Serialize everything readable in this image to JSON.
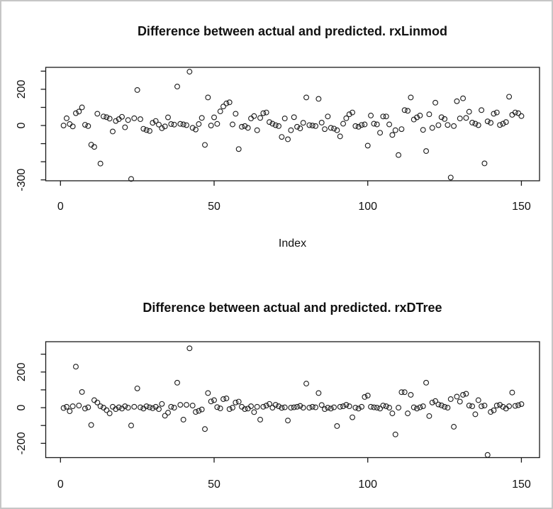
{
  "window": {
    "background": "#ffffff",
    "border_color": "#c6c6c6",
    "plot_color": "#1a1a1a"
  },
  "chart_data": [
    {
      "type": "scatter",
      "title": "Difference between actual and predicted. rxLinmod",
      "xlabel": "Index",
      "ylabel": "",
      "grid": false,
      "marker": "open-circle",
      "xlim": [
        -4.8,
        155.9
      ],
      "ylim": [
        -305,
        321
      ],
      "x_ticks": [
        {
          "v": 0,
          "label": "0"
        },
        {
          "v": 50,
          "label": "50"
        },
        {
          "v": 100,
          "label": "100"
        },
        {
          "v": 150,
          "label": "150"
        }
      ],
      "y_ticks": [
        {
          "v": -300,
          "label": "-300"
        },
        {
          "v": -200,
          "label": ""
        },
        {
          "v": -100,
          "label": ""
        },
        {
          "v": 0,
          "label": "0"
        },
        {
          "v": 100,
          "label": ""
        },
        {
          "v": 200,
          "label": "200"
        },
        {
          "v": 300,
          "label": ""
        }
      ],
      "points": [
        [
          1,
          0
        ],
        [
          2,
          40
        ],
        [
          3,
          8
        ],
        [
          4,
          -5
        ],
        [
          5,
          68
        ],
        [
          6,
          77
        ],
        [
          7,
          100
        ],
        [
          8,
          4
        ],
        [
          9,
          -3
        ],
        [
          10,
          -106
        ],
        [
          11,
          -118
        ],
        [
          12,
          65
        ],
        [
          13,
          -210
        ],
        [
          14,
          50
        ],
        [
          15,
          46
        ],
        [
          16,
          38
        ],
        [
          17,
          -33
        ],
        [
          18,
          25
        ],
        [
          19,
          35
        ],
        [
          20,
          48
        ],
        [
          21,
          -10
        ],
        [
          22,
          30
        ],
        [
          23,
          -295
        ],
        [
          24,
          40
        ],
        [
          25,
          196
        ],
        [
          26,
          35
        ],
        [
          27,
          -18
        ],
        [
          28,
          -25
        ],
        [
          29,
          -30
        ],
        [
          30,
          15
        ],
        [
          31,
          25
        ],
        [
          32,
          5
        ],
        [
          33,
          -15
        ],
        [
          34,
          -5
        ],
        [
          35,
          45
        ],
        [
          36,
          8
        ],
        [
          37,
          5
        ],
        [
          38,
          215
        ],
        [
          39,
          9
        ],
        [
          40,
          6
        ],
        [
          41,
          2
        ],
        [
          42,
          297
        ],
        [
          43,
          -13
        ],
        [
          44,
          -22
        ],
        [
          45,
          8
        ],
        [
          46,
          42
        ],
        [
          47,
          -107
        ],
        [
          48,
          155
        ],
        [
          49,
          0
        ],
        [
          50,
          45
        ],
        [
          51,
          9
        ],
        [
          52,
          78
        ],
        [
          53,
          105
        ],
        [
          54,
          122
        ],
        [
          55,
          128
        ],
        [
          56,
          6
        ],
        [
          57,
          65
        ],
        [
          58,
          -130
        ],
        [
          59,
          -7
        ],
        [
          60,
          -3
        ],
        [
          61,
          -13
        ],
        [
          62,
          39
        ],
        [
          63,
          52
        ],
        [
          64,
          -26
        ],
        [
          65,
          42
        ],
        [
          66,
          68
        ],
        [
          67,
          72
        ],
        [
          68,
          19
        ],
        [
          69,
          10
        ],
        [
          70,
          2
        ],
        [
          71,
          -3
        ],
        [
          72,
          -63
        ],
        [
          73,
          39
        ],
        [
          74,
          -76
        ],
        [
          75,
          -26
        ],
        [
          76,
          46
        ],
        [
          77,
          -7
        ],
        [
          78,
          -16
        ],
        [
          79,
          15
        ],
        [
          80,
          155
        ],
        [
          81,
          2
        ],
        [
          82,
          0
        ],
        [
          83,
          -3
        ],
        [
          84,
          147
        ],
        [
          85,
          16
        ],
        [
          86,
          -20
        ],
        [
          87,
          50
        ],
        [
          88,
          -13
        ],
        [
          89,
          -17
        ],
        [
          90,
          -26
        ],
        [
          91,
          -60
        ],
        [
          92,
          10
        ],
        [
          93,
          40
        ],
        [
          94,
          62
        ],
        [
          95,
          72
        ],
        [
          96,
          -3
        ],
        [
          97,
          -7
        ],
        [
          98,
          3
        ],
        [
          99,
          6
        ],
        [
          100,
          -111
        ],
        [
          101,
          55
        ],
        [
          102,
          10
        ],
        [
          103,
          6
        ],
        [
          104,
          -40
        ],
        [
          105,
          50
        ],
        [
          106,
          50
        ],
        [
          107,
          6
        ],
        [
          108,
          -52
        ],
        [
          109,
          -26
        ],
        [
          110,
          -163
        ],
        [
          111,
          -20
        ],
        [
          112,
          85
        ],
        [
          113,
          81
        ],
        [
          114,
          155
        ],
        [
          115,
          33
        ],
        [
          116,
          45
        ],
        [
          117,
          55
        ],
        [
          118,
          -24
        ],
        [
          119,
          -141
        ],
        [
          120,
          62
        ],
        [
          121,
          -13
        ],
        [
          122,
          126
        ],
        [
          123,
          2
        ],
        [
          124,
          46
        ],
        [
          125,
          36
        ],
        [
          126,
          3
        ],
        [
          127,
          -287
        ],
        [
          128,
          -3
        ],
        [
          129,
          134
        ],
        [
          130,
          39
        ],
        [
          131,
          150
        ],
        [
          132,
          42
        ],
        [
          133,
          76
        ],
        [
          134,
          16
        ],
        [
          135,
          10
        ],
        [
          136,
          2
        ],
        [
          137,
          85
        ],
        [
          138,
          -209
        ],
        [
          139,
          23
        ],
        [
          140,
          15
        ],
        [
          141,
          65
        ],
        [
          142,
          72
        ],
        [
          143,
          3
        ],
        [
          144,
          10
        ],
        [
          145,
          19
        ],
        [
          146,
          159
        ],
        [
          147,
          59
        ],
        [
          148,
          72
        ],
        [
          149,
          68
        ],
        [
          150,
          52
        ]
      ]
    },
    {
      "type": "scatter",
      "title": "Difference between actual and predicted. rxDTree",
      "xlabel": "",
      "ylabel": "",
      "grid": false,
      "marker": "open-circle",
      "xlim": [
        -4.8,
        155.9
      ],
      "ylim": [
        -280,
        370
      ],
      "x_ticks": [
        {
          "v": 0,
          "label": "0"
        },
        {
          "v": 50,
          "label": "50"
        },
        {
          "v": 100,
          "label": "100"
        },
        {
          "v": 150,
          "label": "150"
        }
      ],
      "y_ticks": [
        {
          "v": -200,
          "label": "-200"
        },
        {
          "v": -100,
          "label": ""
        },
        {
          "v": 0,
          "label": "0"
        },
        {
          "v": 100,
          "label": ""
        },
        {
          "v": 200,
          "label": "200"
        },
        {
          "v": 300,
          "label": ""
        }
      ],
      "points": [
        [
          1,
          -2
        ],
        [
          2,
          5
        ],
        [
          3,
          -20
        ],
        [
          4,
          8
        ],
        [
          5,
          230
        ],
        [
          6,
          12
        ],
        [
          7,
          88
        ],
        [
          8,
          -5
        ],
        [
          9,
          2
        ],
        [
          10,
          -97
        ],
        [
          11,
          42
        ],
        [
          12,
          29
        ],
        [
          13,
          8
        ],
        [
          14,
          0
        ],
        [
          15,
          -14
        ],
        [
          16,
          -32
        ],
        [
          17,
          5
        ],
        [
          18,
          -8
        ],
        [
          19,
          2
        ],
        [
          20,
          -5
        ],
        [
          21,
          8
        ],
        [
          22,
          0
        ],
        [
          23,
          -100
        ],
        [
          24,
          5
        ],
        [
          25,
          108
        ],
        [
          26,
          2
        ],
        [
          27,
          -5
        ],
        [
          28,
          8
        ],
        [
          29,
          2
        ],
        [
          30,
          -3
        ],
        [
          31,
          5
        ],
        [
          32,
          -8
        ],
        [
          33,
          21
        ],
        [
          34,
          -45
        ],
        [
          35,
          -28
        ],
        [
          36,
          5
        ],
        [
          37,
          0
        ],
        [
          38,
          140
        ],
        [
          39,
          16
        ],
        [
          40,
          -67
        ],
        [
          41,
          16
        ],
        [
          42,
          333
        ],
        [
          43,
          12
        ],
        [
          44,
          -24
        ],
        [
          45,
          -18
        ],
        [
          46,
          -10
        ],
        [
          47,
          -120
        ],
        [
          48,
          82
        ],
        [
          49,
          35
        ],
        [
          50,
          42
        ],
        [
          51,
          3
        ],
        [
          52,
          -4
        ],
        [
          53,
          48
        ],
        [
          54,
          52
        ],
        [
          55,
          -8
        ],
        [
          56,
          0
        ],
        [
          57,
          29
        ],
        [
          58,
          34
        ],
        [
          59,
          5
        ],
        [
          60,
          -8
        ],
        [
          61,
          -5
        ],
        [
          62,
          8
        ],
        [
          63,
          -25
        ],
        [
          64,
          5
        ],
        [
          65,
          -67
        ],
        [
          66,
          5
        ],
        [
          67,
          12
        ],
        [
          68,
          21
        ],
        [
          69,
          0
        ],
        [
          70,
          16
        ],
        [
          71,
          8
        ],
        [
          72,
          -1
        ],
        [
          73,
          2
        ],
        [
          74,
          -72
        ],
        [
          75,
          0
        ],
        [
          76,
          2
        ],
        [
          77,
          5
        ],
        [
          78,
          10
        ],
        [
          79,
          0
        ],
        [
          80,
          135
        ],
        [
          81,
          0
        ],
        [
          82,
          5
        ],
        [
          83,
          2
        ],
        [
          84,
          82
        ],
        [
          85,
          15
        ],
        [
          86,
          -8
        ],
        [
          87,
          0
        ],
        [
          88,
          -5
        ],
        [
          89,
          2
        ],
        [
          90,
          -103
        ],
        [
          91,
          5
        ],
        [
          92,
          8
        ],
        [
          93,
          16
        ],
        [
          94,
          8
        ],
        [
          95,
          -54
        ],
        [
          96,
          0
        ],
        [
          97,
          -5
        ],
        [
          98,
          5
        ],
        [
          99,
          60
        ],
        [
          100,
          68
        ],
        [
          101,
          5
        ],
        [
          102,
          2
        ],
        [
          103,
          0
        ],
        [
          104,
          -5
        ],
        [
          105,
          12
        ],
        [
          106,
          8
        ],
        [
          107,
          0
        ],
        [
          108,
          -32
        ],
        [
          109,
          -150
        ],
        [
          110,
          0
        ],
        [
          111,
          87
        ],
        [
          112,
          87
        ],
        [
          113,
          -32
        ],
        [
          114,
          72
        ],
        [
          115,
          2
        ],
        [
          116,
          -5
        ],
        [
          117,
          2
        ],
        [
          118,
          8
        ],
        [
          119,
          140
        ],
        [
          120,
          -47
        ],
        [
          121,
          29
        ],
        [
          122,
          37
        ],
        [
          123,
          18
        ],
        [
          124,
          13
        ],
        [
          125,
          5
        ],
        [
          126,
          0
        ],
        [
          127,
          48
        ],
        [
          128,
          -107
        ],
        [
          129,
          62
        ],
        [
          130,
          34
        ],
        [
          131,
          72
        ],
        [
          132,
          78
        ],
        [
          133,
          12
        ],
        [
          134,
          8
        ],
        [
          135,
          -37
        ],
        [
          136,
          42
        ],
        [
          137,
          8
        ],
        [
          138,
          12
        ],
        [
          139,
          -265
        ],
        [
          140,
          -24
        ],
        [
          141,
          -15
        ],
        [
          142,
          12
        ],
        [
          143,
          16
        ],
        [
          144,
          5
        ],
        [
          145,
          -5
        ],
        [
          146,
          8
        ],
        [
          147,
          85
        ],
        [
          148,
          10
        ],
        [
          149,
          14
        ],
        [
          150,
          20
        ]
      ]
    }
  ]
}
